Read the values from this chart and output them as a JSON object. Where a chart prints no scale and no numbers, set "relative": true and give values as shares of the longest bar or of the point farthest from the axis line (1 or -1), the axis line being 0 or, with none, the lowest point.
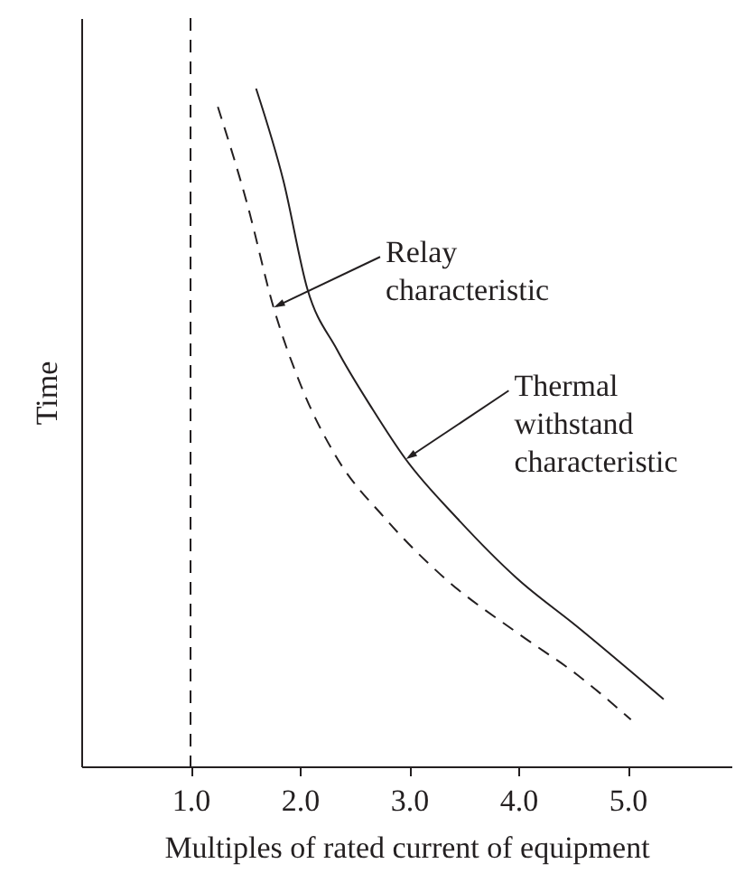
{
  "chart_data": {
    "type": "line",
    "relative": true,
    "xlabel": "Multiples of rated current of equipment",
    "ylabel": "Time",
    "xlim": [
      0,
      5.95
    ],
    "xticks": [
      {
        "value": 1,
        "label": "1.0"
      },
      {
        "value": 2,
        "label": "2.0"
      },
      {
        "value": 3,
        "label": "3.0"
      },
      {
        "value": 4,
        "label": "4.0"
      },
      {
        "value": 5,
        "label": "5.0"
      }
    ],
    "series": [
      {
        "color": "#231f20",
        "line_style": "solid",
        "x": [
          1.6,
          1.85,
          2.07,
          2.34,
          2.67,
          2.97,
          3.44,
          3.99,
          4.54,
          5.33
        ],
        "values": [
          1.0,
          0.864,
          0.704,
          0.615,
          0.526,
          0.453,
          0.366,
          0.277,
          0.206,
          0.099
        ]
      },
      {
        "color": "#231f20",
        "line_style": "dashed",
        "x": [
          1.25,
          1.52,
          1.76,
          2.01,
          2.34,
          2.78,
          3.33,
          3.99,
          4.54,
          5.03
        ],
        "values": [
          0.973,
          0.829,
          0.677,
          0.562,
          0.455,
          0.366,
          0.277,
          0.197,
          0.135,
          0.069
        ]
      }
    ],
    "ref_lines": [
      {
        "axis": "x",
        "value": 1,
        "color": "#231f20",
        "line_style": "dashed"
      }
    ],
    "annotations": [
      {
        "text": "Relay\ncharacteristic",
        "x": 1.76,
        "y": 0.677
      },
      {
        "text": "Thermal\nwithstand\ncharacteristic",
        "x": 2.97,
        "y": 0.453
      }
    ]
  }
}
